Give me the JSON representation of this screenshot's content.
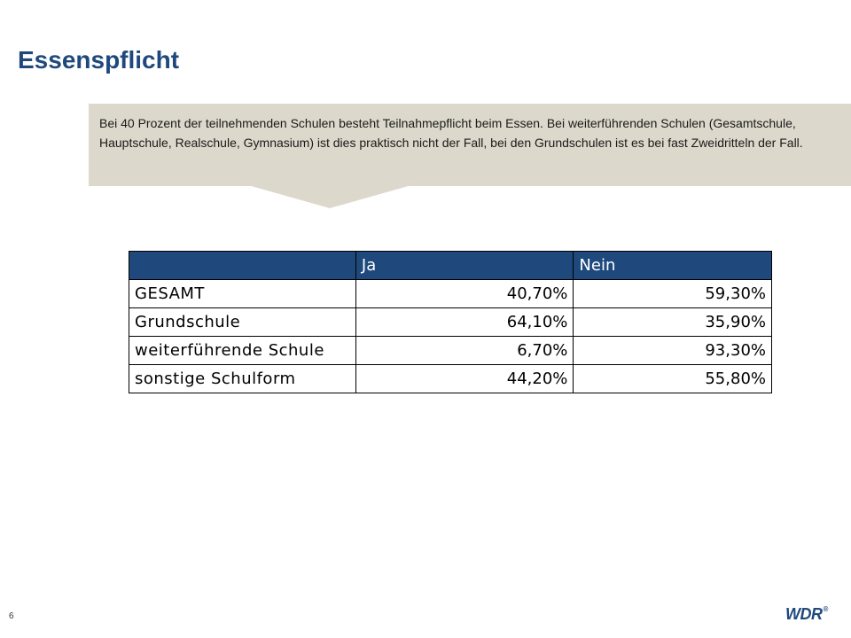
{
  "slide": {
    "title": "Essenspflicht",
    "page_number": "6",
    "logo_text": "WDR",
    "logo_mark": "®"
  },
  "callout": {
    "text": "Bei 40 Prozent der teilnehmenden Schulen besteht Teilnahmepflicht beim Essen. Bei weiterführenden Schulen (Gesamtschule, Hauptschule, Realschule, Gymnasium) ist dies praktisch nicht der Fall, bei den Grundschulen ist es bei fast Zweidritteln der Fall."
  },
  "table": {
    "headers": [
      "",
      "Ja",
      "Nein"
    ],
    "rows": [
      {
        "label": "GESAMT",
        "ja": "40,70%",
        "nein": "59,30%"
      },
      {
        "label": "Grundschule",
        "ja": "64,10%",
        "nein": "35,90%"
      },
      {
        "label": "weiterführende Schule",
        "ja": "6,70%",
        "nein": "93,30%"
      },
      {
        "label": "sonstige Schulform",
        "ja": "44,20%",
        "nein": "55,80%"
      }
    ]
  },
  "colors": {
    "title": "#1f497d",
    "header_bg": "#1f497d",
    "callout_bg": "#ddd8cc"
  }
}
